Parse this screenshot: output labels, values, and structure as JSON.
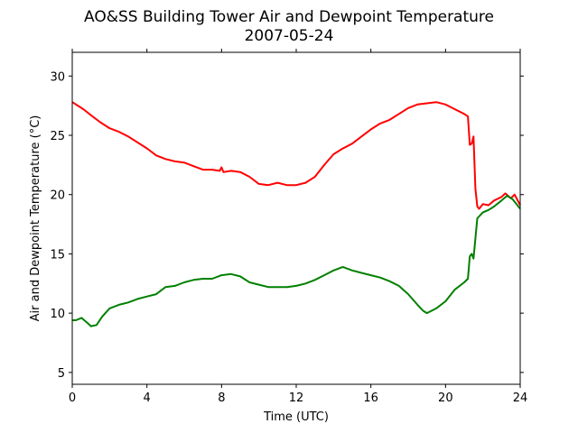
{
  "chart_data": {
    "type": "line",
    "title": "AO&SS Building Tower Air and Dewpoint Temperature",
    "subtitle": "2007-05-24",
    "xlabel": "Time (UTC)",
    "ylabel": "Air and Dewpoint Temperature (°C)",
    "xlim": [
      0,
      24
    ],
    "ylim": [
      4,
      32
    ],
    "xticks": [
      0,
      4,
      8,
      12,
      16,
      20,
      24
    ],
    "yticks": [
      5,
      10,
      15,
      20,
      25,
      30
    ],
    "grid": false,
    "legend": "none",
    "series": [
      {
        "color": "#ff0000",
        "x": [
          0,
          0.3,
          0.6,
          1,
          1.5,
          2,
          2.5,
          3,
          3.5,
          4,
          4.5,
          5,
          5.5,
          6,
          6.5,
          7,
          7.5,
          7.9,
          8,
          8.1,
          8.5,
          9,
          9.5,
          10,
          10.5,
          11,
          11.5,
          12,
          12.5,
          13,
          13.5,
          14,
          14.5,
          15,
          15.5,
          16,
          16.5,
          17,
          17.5,
          18,
          18.5,
          19,
          19.5,
          20,
          20.5,
          21,
          21.2,
          21.3,
          21.4,
          21.5,
          21.6,
          21.7,
          21.8,
          22,
          22.3,
          22.6,
          23,
          23.2,
          23.5,
          23.7,
          24
        ],
        "y": [
          27.8,
          27.5,
          27.2,
          26.7,
          26.1,
          25.6,
          25.3,
          24.9,
          24.4,
          23.9,
          23.3,
          23.0,
          22.8,
          22.7,
          22.4,
          22.1,
          22.1,
          22.0,
          22.3,
          21.9,
          22.0,
          21.9,
          21.5,
          20.9,
          20.8,
          21.0,
          20.8,
          20.8,
          21.0,
          21.5,
          22.5,
          23.4,
          23.9,
          24.3,
          24.9,
          25.5,
          26.0,
          26.3,
          26.8,
          27.3,
          27.6,
          27.7,
          27.8,
          27.6,
          27.2,
          26.8,
          26.6,
          24.2,
          24.3,
          24.9,
          20.5,
          19.0,
          18.8,
          19.2,
          19.1,
          19.5,
          19.8,
          20.1,
          19.7,
          20.0,
          19.1
        ]
      },
      {
        "color": "#008000",
        "x": [
          0,
          0.2,
          0.5,
          0.8,
          1,
          1.3,
          1.6,
          2,
          2.5,
          3,
          3.5,
          4,
          4.5,
          5,
          5.5,
          6,
          6.5,
          7,
          7.5,
          8,
          8.5,
          9,
          9.5,
          10,
          10.5,
          11,
          11.5,
          12,
          12.5,
          13,
          13.5,
          14,
          14.5,
          15,
          15.5,
          16,
          16.5,
          17,
          17.5,
          18,
          18.5,
          18.8,
          19,
          19.5,
          20,
          20.5,
          21,
          21.2,
          21.3,
          21.4,
          21.5,
          21.7,
          22,
          22.3,
          22.6,
          23,
          23.3,
          23.6,
          24
        ],
        "y": [
          9.4,
          9.4,
          9.6,
          9.2,
          8.9,
          9.0,
          9.7,
          10.4,
          10.7,
          10.9,
          11.2,
          11.4,
          11.6,
          12.2,
          12.3,
          12.6,
          12.8,
          12.9,
          12.9,
          13.2,
          13.3,
          13.1,
          12.6,
          12.4,
          12.2,
          12.2,
          12.2,
          12.3,
          12.5,
          12.8,
          13.2,
          13.6,
          13.9,
          13.6,
          13.4,
          13.2,
          13.0,
          12.7,
          12.3,
          11.6,
          10.7,
          10.2,
          10.0,
          10.4,
          11.0,
          12.0,
          12.6,
          12.9,
          14.8,
          15.0,
          14.6,
          18.0,
          18.5,
          18.7,
          19.0,
          19.5,
          19.9,
          19.6,
          18.8
        ]
      }
    ]
  }
}
